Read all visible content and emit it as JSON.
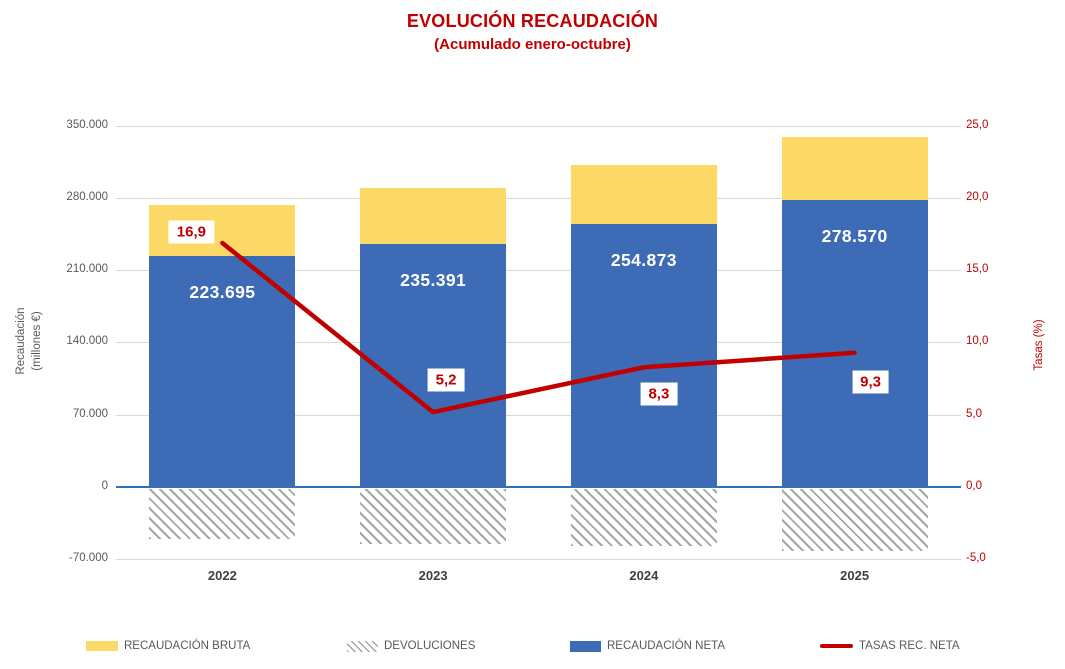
{
  "title": "EVOLUCIÓN RECAUDACIÓN",
  "subtitle": "(Acumulado enero-octubre)",
  "colors": {
    "title_red": "#C00000",
    "bar_blue": "#3D6BB5",
    "bar_yellow": "#FCD966",
    "line_red": "#C00000",
    "hatch_gray": "#A6A6A6",
    "gridline": "#D9D9D9",
    "zero_line_blue": "#2E74B5",
    "axis_text_gray": "#595959"
  },
  "chart_data": {
    "type": "bar",
    "subtype": "stacked-bars-with-line-overlay",
    "categories": [
      "2022",
      "2023",
      "2024",
      "2025"
    ],
    "series": [
      {
        "name": "RECAUDACIÓN BRUTA",
        "type": "bar",
        "color": "#FCD966",
        "values": [
          273695,
          290391,
          311873,
          339570
        ],
        "estimated": true
      },
      {
        "name": "DEVOLUCIONES",
        "type": "bar",
        "pattern": "diagonal-hatch",
        "values": [
          -50000,
          -55000,
          -57000,
          -61000
        ],
        "estimated": true
      },
      {
        "name": "RECAUDACIÓN NETA",
        "type": "bar",
        "color": "#3D6BB5",
        "values": [
          223695,
          235391,
          254873,
          278570
        ],
        "labels": [
          "223.695",
          "235.391",
          "254.873",
          "278.570"
        ]
      },
      {
        "name": "TASAS REC. NETA",
        "type": "line",
        "color": "#C00000",
        "values": [
          16.9,
          5.2,
          8.3,
          9.3
        ],
        "labels": [
          "16,9",
          "5,2",
          "8,3",
          "9,3"
        ]
      }
    ],
    "left_axis": {
      "title_line1": "Recaudación",
      "title_line2": "(millones €)",
      "ticks": [
        "350.000",
        "280.000",
        "210.000",
        "140.000",
        "70.000",
        "0",
        "-70.000"
      ],
      "tick_values": [
        350000,
        280000,
        210000,
        140000,
        70000,
        0,
        -70000
      ],
      "range": [
        -70000,
        350000
      ],
      "grid": true
    },
    "right_axis": {
      "title": "Tasas (%)",
      "ticks": [
        "25,0",
        "20,0",
        "15,0",
        "10,0",
        "5,0",
        "0,0",
        "-5,0"
      ],
      "tick_values": [
        25,
        20,
        15,
        10,
        5,
        0,
        -5
      ],
      "range": [
        -5,
        25
      ]
    },
    "legend": [
      {
        "label": "RECAUDACIÓN BRUTA",
        "swatch": "yellow-rect"
      },
      {
        "label": "DEVOLUCIONES",
        "swatch": "diagonal-hatch"
      },
      {
        "label": "RECAUDACIÓN NETA",
        "swatch": "blue-rect"
      },
      {
        "label": "TASAS REC. NETA",
        "swatch": "red-line"
      }
    ],
    "legend_position": "bottom"
  }
}
